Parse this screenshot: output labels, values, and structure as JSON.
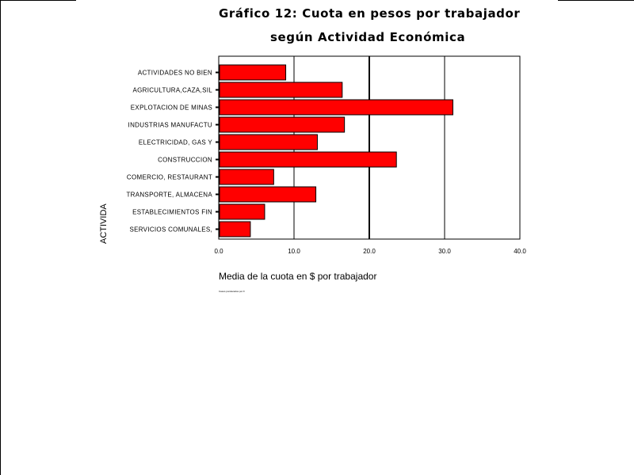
{
  "chart_data": {
    "type": "bar",
    "orientation": "horizontal",
    "title": "Gráfico 12: Cuota en pesos por trabajador",
    "subtitle": "según Actividad Económica",
    "xlabel": "Media de la cuota en $ por trabajador",
    "ylabel": "ACTIVIDA",
    "xlim": [
      0,
      40
    ],
    "x_ticks": [
      "0.0",
      "10.0",
      "20.0",
      "30.0",
      "40.0"
    ],
    "grid": "vertical",
    "bar_color": "#ff0000",
    "categories": [
      "ACTIVIDADES NO BIEN",
      "AGRICULTURA,CAZA,SIL",
      "EXPLOTACION DE MINAS",
      "INDUSTRIAS MANUFACTU",
      "ELECTRICIDAD, GAS Y",
      "CONSTRUCCION",
      "COMERCIO, RESTAURANT",
      "TRANSPORTE, ALMACENA",
      "ESTABLECIMIENTOS FIN",
      "SERVICIOS COMUNALES,"
    ],
    "values": [
      8.9,
      16.4,
      31.1,
      16.7,
      13.1,
      23.6,
      7.3,
      12.9,
      6.1,
      4.2
    ]
  },
  "footnote": "Casos ponderados por F"
}
